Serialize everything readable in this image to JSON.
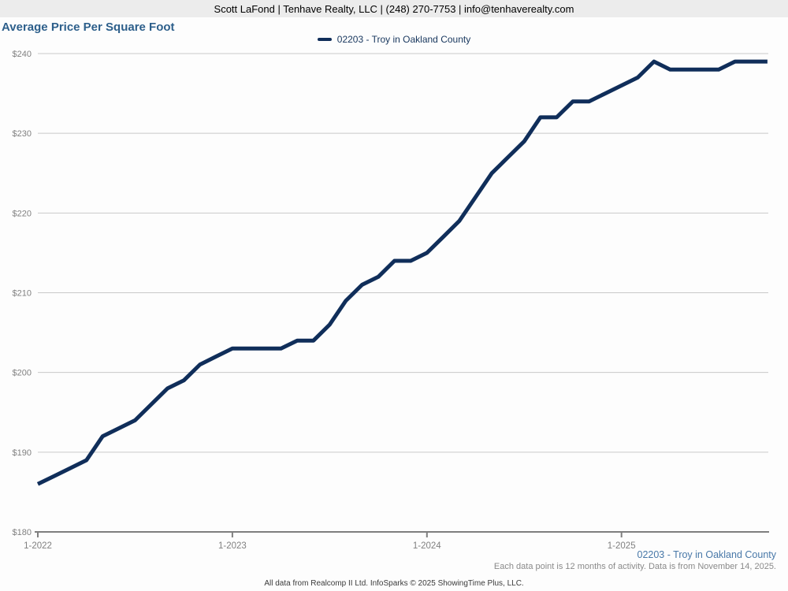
{
  "header": {
    "contact_line": "Scott LaFond | Tenhave Realty, LLC | (248) 270-7753 | info@tenhaverealty.com"
  },
  "title": "Average Price Per Square Foot",
  "legend": {
    "label": "02203 - Troy in Oakland County"
  },
  "colors": {
    "series_line": "#102e5a",
    "title_blue": "#2d5f8b",
    "footer_link_blue": "#4878a8",
    "grid_gray": "#c9c9c9",
    "axis_gray": "#7f7f7f",
    "tick_label_gray": "#808080",
    "header_bg": "#ececec"
  },
  "chart_data": {
    "type": "line",
    "title": "Average Price Per Square Foot",
    "ylabel": "",
    "xlabel": "",
    "ylim": [
      180,
      240
    ],
    "y_ticks": [
      180,
      190,
      200,
      210,
      220,
      230,
      240
    ],
    "y_tick_prefix": "$",
    "grid": true,
    "legend_position": "top-center",
    "x_tick_labels": [
      "1-2022",
      "1-2023",
      "1-2024",
      "1-2025"
    ],
    "x": [
      "1-2022",
      "2-2022",
      "3-2022",
      "4-2022",
      "5-2022",
      "6-2022",
      "7-2022",
      "8-2022",
      "9-2022",
      "10-2022",
      "11-2022",
      "12-2022",
      "1-2023",
      "2-2023",
      "3-2023",
      "4-2023",
      "5-2023",
      "6-2023",
      "7-2023",
      "8-2023",
      "9-2023",
      "10-2023",
      "11-2023",
      "12-2023",
      "1-2024",
      "2-2024",
      "3-2024",
      "4-2024",
      "5-2024",
      "6-2024",
      "7-2024",
      "8-2024",
      "9-2024",
      "10-2024",
      "11-2024",
      "12-2024",
      "1-2025",
      "2-2025",
      "3-2025",
      "4-2025",
      "5-2025",
      "6-2025",
      "7-2025",
      "8-2025",
      "9-2025",
      "10-2025"
    ],
    "series": [
      {
        "name": "02203 - Troy in Oakland County",
        "color": "#102e5a",
        "values": [
          186,
          187,
          188,
          189,
          192,
          193,
          194,
          196,
          198,
          199,
          201,
          202,
          203,
          203,
          203,
          203,
          204,
          204,
          206,
          209,
          211,
          212,
          214,
          214,
          215,
          217,
          219,
          222,
          225,
          227,
          229,
          232,
          232,
          234,
          234,
          235,
          236,
          237,
          239,
          238,
          238,
          238,
          238,
          239,
          239,
          239
        ]
      }
    ]
  },
  "footer": {
    "series_label": "02203 - Troy in Oakland County",
    "note": "Each data point is 12 months of activity. Data is from November 14, 2025.",
    "attribution": "All data from Realcomp II Ltd. InfoSparks © 2025 ShowingTime Plus, LLC."
  }
}
